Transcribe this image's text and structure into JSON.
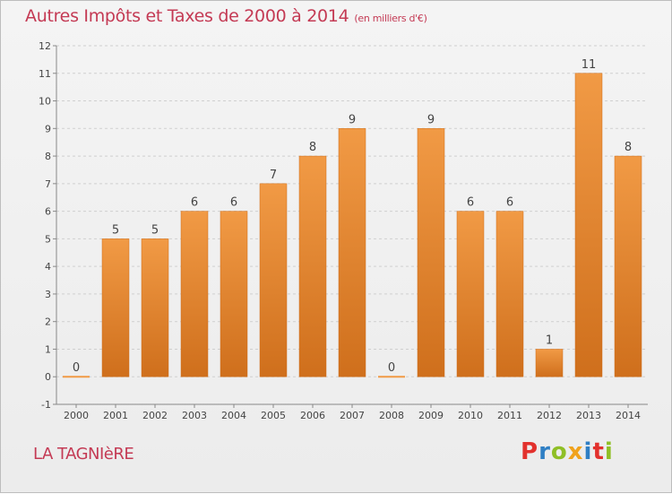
{
  "header": {
    "title": "Autres Impôts et Taxes de 2000 à 2014",
    "unit": "(en milliers d'€)"
  },
  "footer": {
    "town": "LA TAGNIèRE",
    "logo_letters": [
      "P",
      "r",
      "o",
      "x",
      "i",
      "t",
      "i"
    ],
    "logo_colors": [
      "#e2312d",
      "#2f7fc4",
      "#8fbf26",
      "#f0a21d",
      "#2f7fc4",
      "#e2312d",
      "#8fbf26"
    ]
  },
  "chart_data": {
    "type": "bar",
    "title": "Autres Impôts et Taxes de 2000 à 2014",
    "subtitle": "(en milliers d'€)",
    "categories": [
      "2000",
      "2001",
      "2002",
      "2003",
      "2004",
      "2005",
      "2006",
      "2007",
      "2008",
      "2009",
      "2010",
      "2011",
      "2012",
      "2013",
      "2014"
    ],
    "values": [
      0,
      5,
      5,
      6,
      6,
      7,
      8,
      9,
      0,
      9,
      6,
      6,
      1,
      11,
      8
    ],
    "data_labels": [
      "0",
      "5",
      "5",
      "6",
      "6",
      "7",
      "8",
      "9",
      "0",
      "9",
      "6",
      "6",
      "1",
      "11",
      "8"
    ],
    "ylim": [
      -1,
      12
    ],
    "yticks": [
      "-1",
      "0",
      "1",
      "2",
      "3",
      "4",
      "5",
      "6",
      "7",
      "8",
      "9",
      "10",
      "11",
      "12"
    ],
    "ytick_values": [
      -1,
      0,
      1,
      2,
      3,
      4,
      5,
      6,
      7,
      8,
      9,
      10,
      11,
      12
    ],
    "grid": "horizontal-dashed",
    "bar_color": "#f19a45",
    "bar_color_dark": "#cf6f1c"
  }
}
